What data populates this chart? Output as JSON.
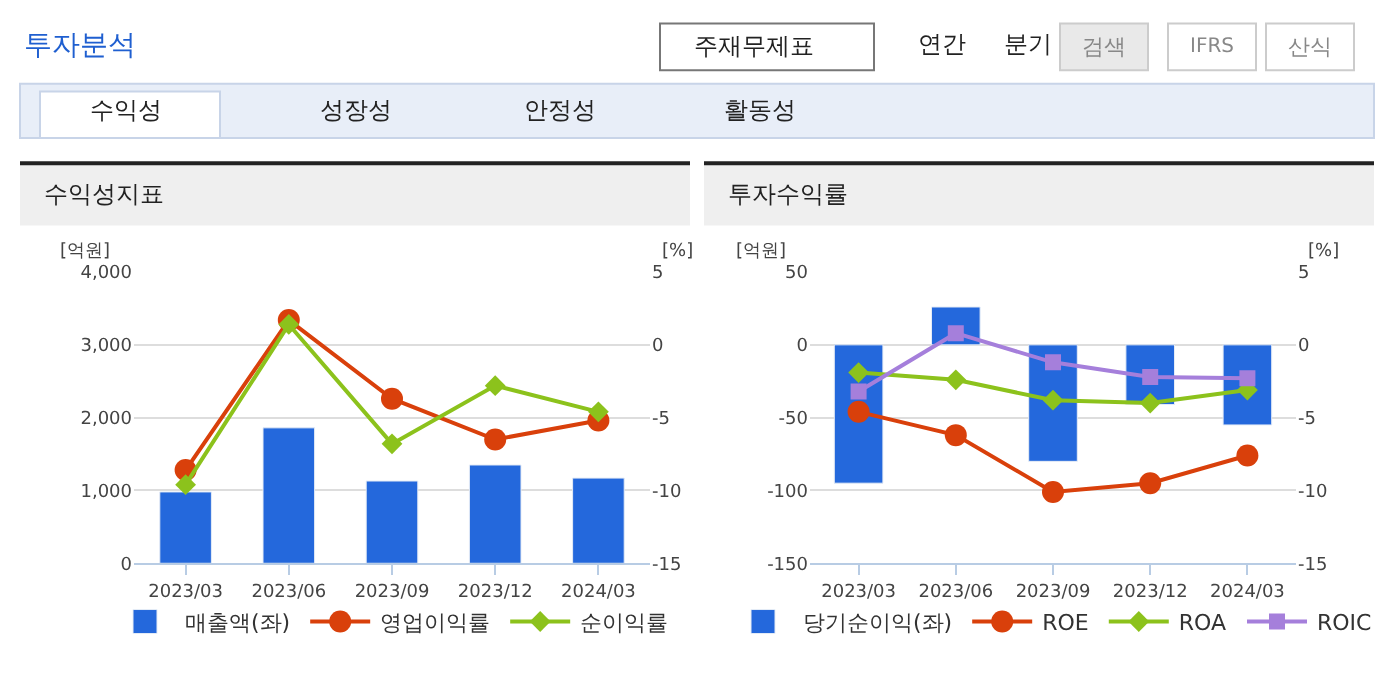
{
  "chart_data": [
    {
      "type": "bar",
      "title": "수익성지표",
      "annotations": [
        "투자분석",
        "주재무제표",
        "연간",
        "분기",
        "검색",
        "IFRS",
        "산식",
        "수익성",
        "성장성",
        "안정성",
        "활동성"
      ],
      "categories": [
        "2023/03",
        "2023/06",
        "2023/09",
        "2023/12",
        "2024/03"
      ],
      "ylabel": "[억원]",
      "y2label": "[%]",
      "ylim": [
        0,
        4000
      ],
      "yticks": [
        {
          "value": 0,
          "label": "0"
        },
        {
          "value": 1000,
          "label": "1,000"
        },
        {
          "value": 2000,
          "label": "2,000"
        },
        {
          "value": 3000,
          "label": "3,000"
        },
        {
          "value": 4000,
          "label": "4,000"
        }
      ],
      "y2lim": [
        -15,
        5
      ],
      "y2ticks": [
        -15,
        -10,
        -5,
        0,
        5
      ],
      "grid": "y",
      "legend": "bottom",
      "series": [
        {
          "name": "매출액(좌)",
          "color": "#2468dc",
          "values": [
            980,
            1860,
            1130,
            1350,
            1170
          ]
        },
        {
          "name": "영업이익률",
          "type": "line",
          "axis": "y2",
          "marker": "circle",
          "color": "#d9400b",
          "values": [
            -8.6,
            1.7,
            -3.7,
            -6.5,
            -5.2
          ]
        },
        {
          "name": "순이익률",
          "type": "line",
          "axis": "y2",
          "marker": "diamond",
          "color": "#8cc21c",
          "values": [
            -9.6,
            1.4,
            -6.8,
            -2.8,
            -4.6
          ]
        }
      ]
    },
    {
      "type": "bar",
      "title": "투자수익률",
      "categories": [
        "2023/03",
        "2023/06",
        "2023/09",
        "2023/12",
        "2024/03"
      ],
      "ylabel": "[억원]",
      "y2label": "[%]",
      "ylim": [
        -150,
        50
      ],
      "yticks": [
        -150,
        -100,
        -50,
        0,
        50
      ],
      "y2lim": [
        -15,
        5
      ],
      "y2ticks": [
        -15,
        -10,
        -5,
        0,
        5
      ],
      "grid": "y",
      "legend": "bottom",
      "series": [
        {
          "name": "당기순이익(좌)",
          "color": "#2468dc",
          "values": [
            -95,
            26,
            -80,
            -41,
            -55
          ]
        },
        {
          "name": "ROE",
          "type": "line",
          "axis": "y2",
          "marker": "circle",
          "color": "#d9400b",
          "values": [
            -4.6,
            -6.2,
            -10.1,
            -9.5,
            -7.6
          ]
        },
        {
          "name": "ROA",
          "type": "line",
          "axis": "y2",
          "marker": "diamond",
          "color": "#8cc21c",
          "values": [
            -1.9,
            -2.4,
            -3.8,
            -4.0,
            -3.1
          ]
        },
        {
          "name": "ROIC",
          "type": "line",
          "axis": "y2",
          "marker": "square",
          "color": "#a57fdb",
          "values": [
            -3.2,
            0.8,
            -1.2,
            -2.2,
            -2.3
          ]
        }
      ]
    }
  ]
}
